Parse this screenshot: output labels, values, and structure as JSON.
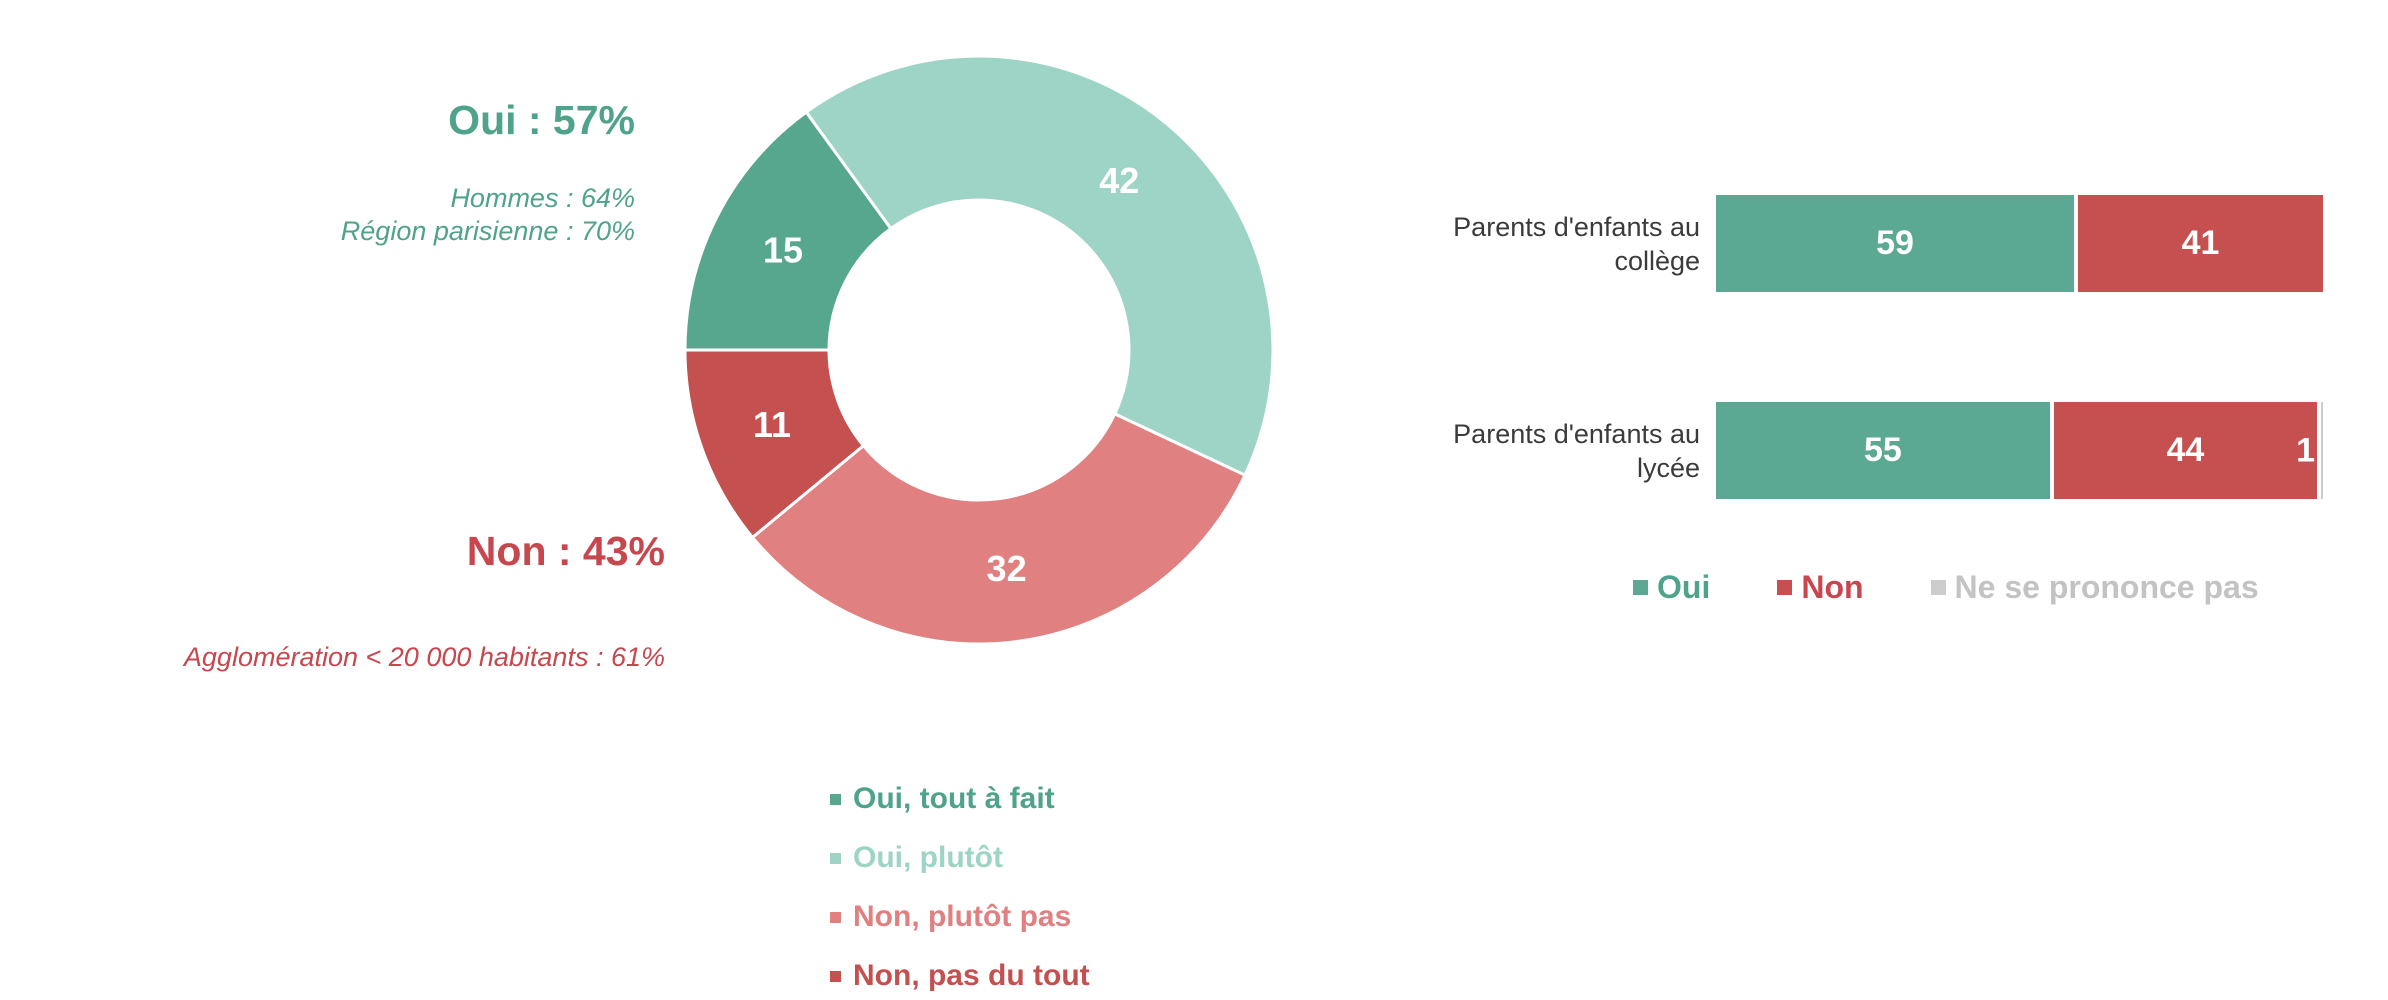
{
  "page": {
    "background": "#ffffff"
  },
  "chart_data": [
    {
      "type": "pie",
      "subtype": "donut",
      "question_context": "Opinion globale (ensemble)",
      "start_angle_deg": -36,
      "hole_ratio": 0.51,
      "legend_position": "bottom-left-column",
      "segments": [
        {
          "label": "Oui, tout à fait",
          "value": 15,
          "color": "#57A68E",
          "text_color": "#4FA28B"
        },
        {
          "label": "Oui, plutôt",
          "value": 42,
          "color": "#9ED4C6",
          "text_color": "#9ED4C6"
        },
        {
          "label": "Non, plutôt pas",
          "value": 32,
          "color": "#E08080",
          "text_color": "#E08080"
        },
        {
          "label": "Non, pas du tout",
          "value": 11,
          "color": "#C4504F",
          "text_color": "#C4504F"
        }
      ],
      "clockwise_order_from_top": [
        1,
        2,
        3,
        0
      ],
      "annotations": {
        "oui_title": "Oui : 57%",
        "oui_color": "#4FA28B",
        "oui_details": [
          "Hommes : 64%",
          "Région parisienne : 70%"
        ],
        "non_title": "Non : 43%",
        "non_color": "#C7474F",
        "non_details": [
          "Agglomération < 20 000 habitants : 61%"
        ]
      }
    },
    {
      "type": "bar",
      "subtype": "horizontal-stacked",
      "axis_max": 100,
      "grid": false,
      "legend_position": "bottom",
      "categories": [
        "Parents d'enfants au collège",
        "Parents d'enfants au lycée"
      ],
      "category_lines": [
        [
          "Parents d'enfants au",
          "collège"
        ],
        [
          "Parents d'enfants au",
          "lycée"
        ]
      ],
      "series": [
        {
          "name": "Oui",
          "color": "#5CA993",
          "text_color": "#4FA28B",
          "values": [
            59,
            55
          ]
        },
        {
          "name": "Non",
          "color": "#C5504F",
          "text_color": "#C7474F",
          "values": [
            41,
            44
          ]
        },
        {
          "name": "Ne se prononce pas",
          "color": "#CCCCCC",
          "text_color": "#C3C3C3",
          "values": [
            0,
            1
          ]
        }
      ]
    }
  ]
}
